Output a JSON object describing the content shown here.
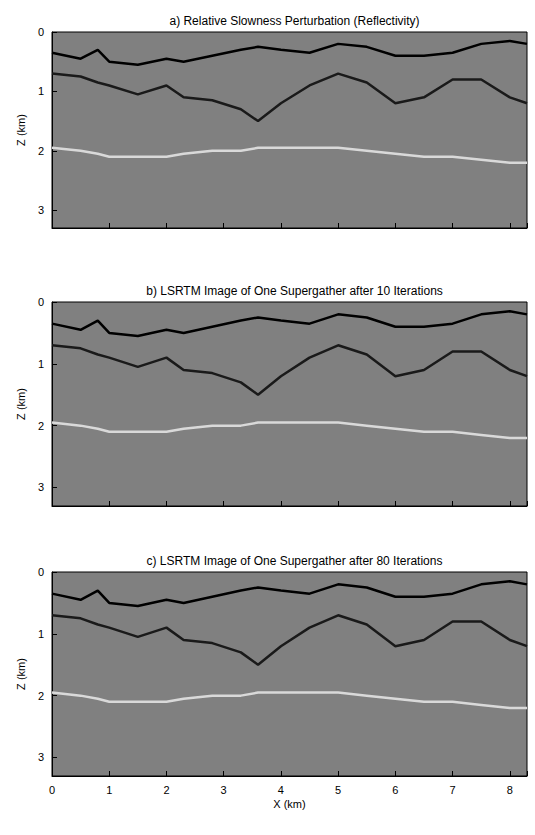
{
  "chart_data": [
    {
      "type": "line",
      "title": "a) Relative Slowness Perturbation (Reflectivity)",
      "ylabel": "Z (km)",
      "xlim": [
        0,
        8.3
      ],
      "xticks": [
        0,
        1,
        2,
        3,
        4,
        5,
        6,
        7,
        8
      ],
      "ylim": [
        3.3,
        0
      ],
      "yticks": [
        0,
        1,
        2,
        3
      ],
      "grid": false,
      "tick_labels": "y",
      "x": [
        0,
        0.5,
        0.8,
        1.0,
        1.5,
        2.0,
        2.3,
        2.8,
        3.3,
        3.6,
        4.0,
        4.5,
        5.0,
        5.5,
        6.0,
        6.5,
        7.0,
        7.5,
        8.0,
        8.3
      ],
      "series": [
        {
          "color": "#000000",
          "values": [
            0.35,
            0.45,
            0.3,
            0.5,
            0.55,
            0.45,
            0.5,
            0.4,
            0.3,
            0.25,
            0.3,
            0.35,
            0.2,
            0.25,
            0.4,
            0.4,
            0.35,
            0.2,
            0.15,
            0.2
          ]
        },
        {
          "color": "#1a1a1a",
          "values": [
            0.7,
            0.75,
            0.85,
            0.9,
            1.05,
            0.9,
            1.1,
            1.15,
            1.3,
            1.5,
            1.2,
            0.9,
            0.7,
            0.85,
            1.2,
            1.1,
            0.8,
            0.8,
            1.1,
            1.2
          ]
        },
        {
          "color": "#d9d9d9",
          "values": [
            1.95,
            2.0,
            2.05,
            2.1,
            2.1,
            2.1,
            2.05,
            2.0,
            2.0,
            1.95,
            1.95,
            1.95,
            1.95,
            2.0,
            2.05,
            2.1,
            2.1,
            2.15,
            2.2,
            2.2
          ]
        }
      ]
    },
    {
      "type": "line",
      "title": "b) LSRTM Image of One Supergather after 10 Iterations",
      "ylabel": "Z (km)",
      "xlim": [
        0,
        8.3
      ],
      "xticks": [
        0,
        1,
        2,
        3,
        4,
        5,
        6,
        7,
        8
      ],
      "ylim": [
        3.3,
        0
      ],
      "yticks": [
        0,
        1,
        2,
        3
      ],
      "grid": false,
      "tick_labels": "y",
      "x": [
        0,
        0.5,
        0.8,
        1.0,
        1.5,
        2.0,
        2.3,
        2.8,
        3.3,
        3.6,
        4.0,
        4.5,
        5.0,
        5.5,
        6.0,
        6.5,
        7.0,
        7.5,
        8.0,
        8.3
      ],
      "series": [
        {
          "color": "#000000",
          "values": [
            0.35,
            0.45,
            0.3,
            0.5,
            0.55,
            0.45,
            0.5,
            0.4,
            0.3,
            0.25,
            0.3,
            0.35,
            0.2,
            0.25,
            0.4,
            0.4,
            0.35,
            0.2,
            0.15,
            0.2
          ]
        },
        {
          "color": "#1a1a1a",
          "values": [
            0.7,
            0.75,
            0.85,
            0.9,
            1.05,
            0.9,
            1.1,
            1.15,
            1.3,
            1.5,
            1.2,
            0.9,
            0.7,
            0.85,
            1.2,
            1.1,
            0.8,
            0.8,
            1.1,
            1.2
          ]
        },
        {
          "color": "#d9d9d9",
          "values": [
            1.95,
            2.0,
            2.05,
            2.1,
            2.1,
            2.1,
            2.05,
            2.0,
            2.0,
            1.95,
            1.95,
            1.95,
            1.95,
            2.0,
            2.05,
            2.1,
            2.1,
            2.15,
            2.2,
            2.2
          ]
        }
      ]
    },
    {
      "type": "line",
      "title": "c) LSRTM Image of One Supergather after 80 Iterations",
      "xlabel": "X (km)",
      "ylabel": "Z (km)",
      "xlim": [
        0,
        8.3
      ],
      "xticks": [
        0,
        1,
        2,
        3,
        4,
        5,
        6,
        7,
        8
      ],
      "ylim": [
        3.3,
        0
      ],
      "yticks": [
        0,
        1,
        2,
        3
      ],
      "grid": false,
      "x": [
        0,
        0.5,
        0.8,
        1.0,
        1.5,
        2.0,
        2.3,
        2.8,
        3.3,
        3.6,
        4.0,
        4.5,
        5.0,
        5.5,
        6.0,
        6.5,
        7.0,
        7.5,
        8.0,
        8.3
      ],
      "series": [
        {
          "color": "#000000",
          "values": [
            0.35,
            0.45,
            0.3,
            0.5,
            0.55,
            0.45,
            0.5,
            0.4,
            0.3,
            0.25,
            0.3,
            0.35,
            0.2,
            0.25,
            0.4,
            0.4,
            0.35,
            0.2,
            0.15,
            0.2
          ]
        },
        {
          "color": "#1a1a1a",
          "values": [
            0.7,
            0.75,
            0.85,
            0.9,
            1.05,
            0.9,
            1.1,
            1.15,
            1.3,
            1.5,
            1.2,
            0.9,
            0.7,
            0.85,
            1.2,
            1.1,
            0.8,
            0.8,
            1.1,
            1.2
          ]
        },
        {
          "color": "#d9d9d9",
          "values": [
            1.95,
            2.0,
            2.05,
            2.1,
            2.1,
            2.1,
            2.05,
            2.0,
            2.0,
            1.95,
            1.95,
            1.95,
            1.95,
            2.0,
            2.05,
            2.1,
            2.1,
            2.15,
            2.2,
            2.2
          ]
        }
      ]
    }
  ]
}
